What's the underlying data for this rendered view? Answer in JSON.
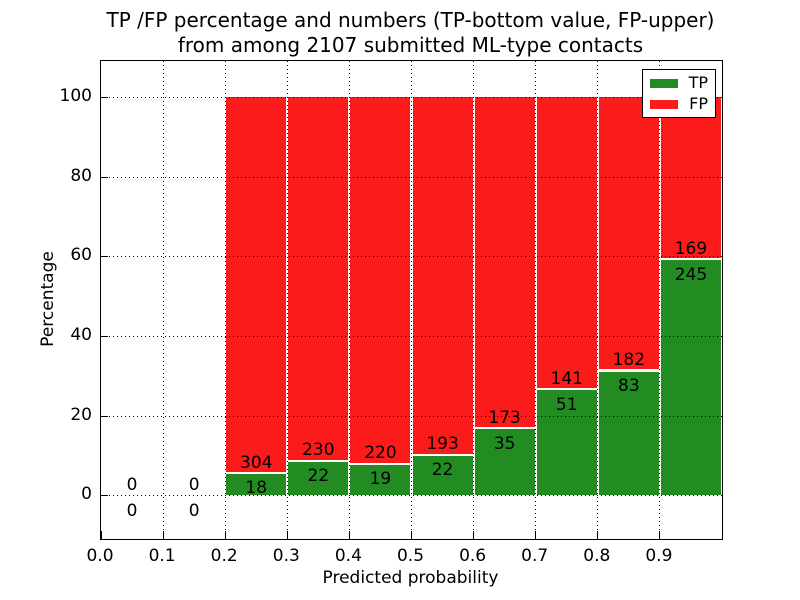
{
  "chart_data": {
    "type": "bar",
    "stacked": true,
    "title_line1": "TP /FP percentage and numbers (TP-bottom value, FP-upper)",
    "title_line2": "from among 2107 submitted ML-type contacts",
    "xlabel": "Predicted probability",
    "ylabel": "Percentage",
    "total_submitted": 2107,
    "x_tick_labels": [
      "0.0",
      "0.1",
      "0.2",
      "0.3",
      "0.4",
      "0.5",
      "0.6",
      "0.7",
      "0.8",
      "0.9"
    ],
    "y_ticks": [
      0,
      20,
      40,
      60,
      80,
      100
    ],
    "y_tick_labels": [
      "0",
      "20",
      "40",
      "60",
      "80",
      "100"
    ],
    "xlim": [
      0.0,
      1.0
    ],
    "ylim": [
      -11,
      109
    ],
    "grid": "dotted",
    "bar_stack_total_percent": 100,
    "legend": {
      "position": "upper-right",
      "items": [
        {
          "label": "TP",
          "color": "#228b22"
        },
        {
          "label": "FP",
          "color": "#fb1b1b"
        }
      ]
    },
    "bins": [
      {
        "x_start": 0.0,
        "x_end": 0.1,
        "tp": 0,
        "fp": 0,
        "tp_percent": 0
      },
      {
        "x_start": 0.1,
        "x_end": 0.2,
        "tp": 0,
        "fp": 0,
        "tp_percent": 0
      },
      {
        "x_start": 0.2,
        "x_end": 0.3,
        "tp": 18,
        "fp": 304,
        "tp_percent": 5.6
      },
      {
        "x_start": 0.3,
        "x_end": 0.4,
        "tp": 22,
        "fp": 230,
        "tp_percent": 8.7
      },
      {
        "x_start": 0.4,
        "x_end": 0.5,
        "tp": 19,
        "fp": 220,
        "tp_percent": 7.9
      },
      {
        "x_start": 0.5,
        "x_end": 0.6,
        "tp": 22,
        "fp": 193,
        "tp_percent": 10.2
      },
      {
        "x_start": 0.6,
        "x_end": 0.7,
        "tp": 35,
        "fp": 173,
        "tp_percent": 16.8
      },
      {
        "x_start": 0.7,
        "x_end": 0.8,
        "tp": 51,
        "fp": 141,
        "tp_percent": 26.6
      },
      {
        "x_start": 0.8,
        "x_end": 0.9,
        "tp": 83,
        "fp": 182,
        "tp_percent": 31.3
      },
      {
        "x_start": 0.9,
        "x_end": 1.0,
        "tp": 245,
        "fp": 169,
        "tp_percent": 59.2
      }
    ]
  },
  "colors": {
    "tp_green": "#228b22",
    "fp_red": "#fb1b1b",
    "grid": "#000000",
    "text": "#000000",
    "background": "#ffffff"
  }
}
